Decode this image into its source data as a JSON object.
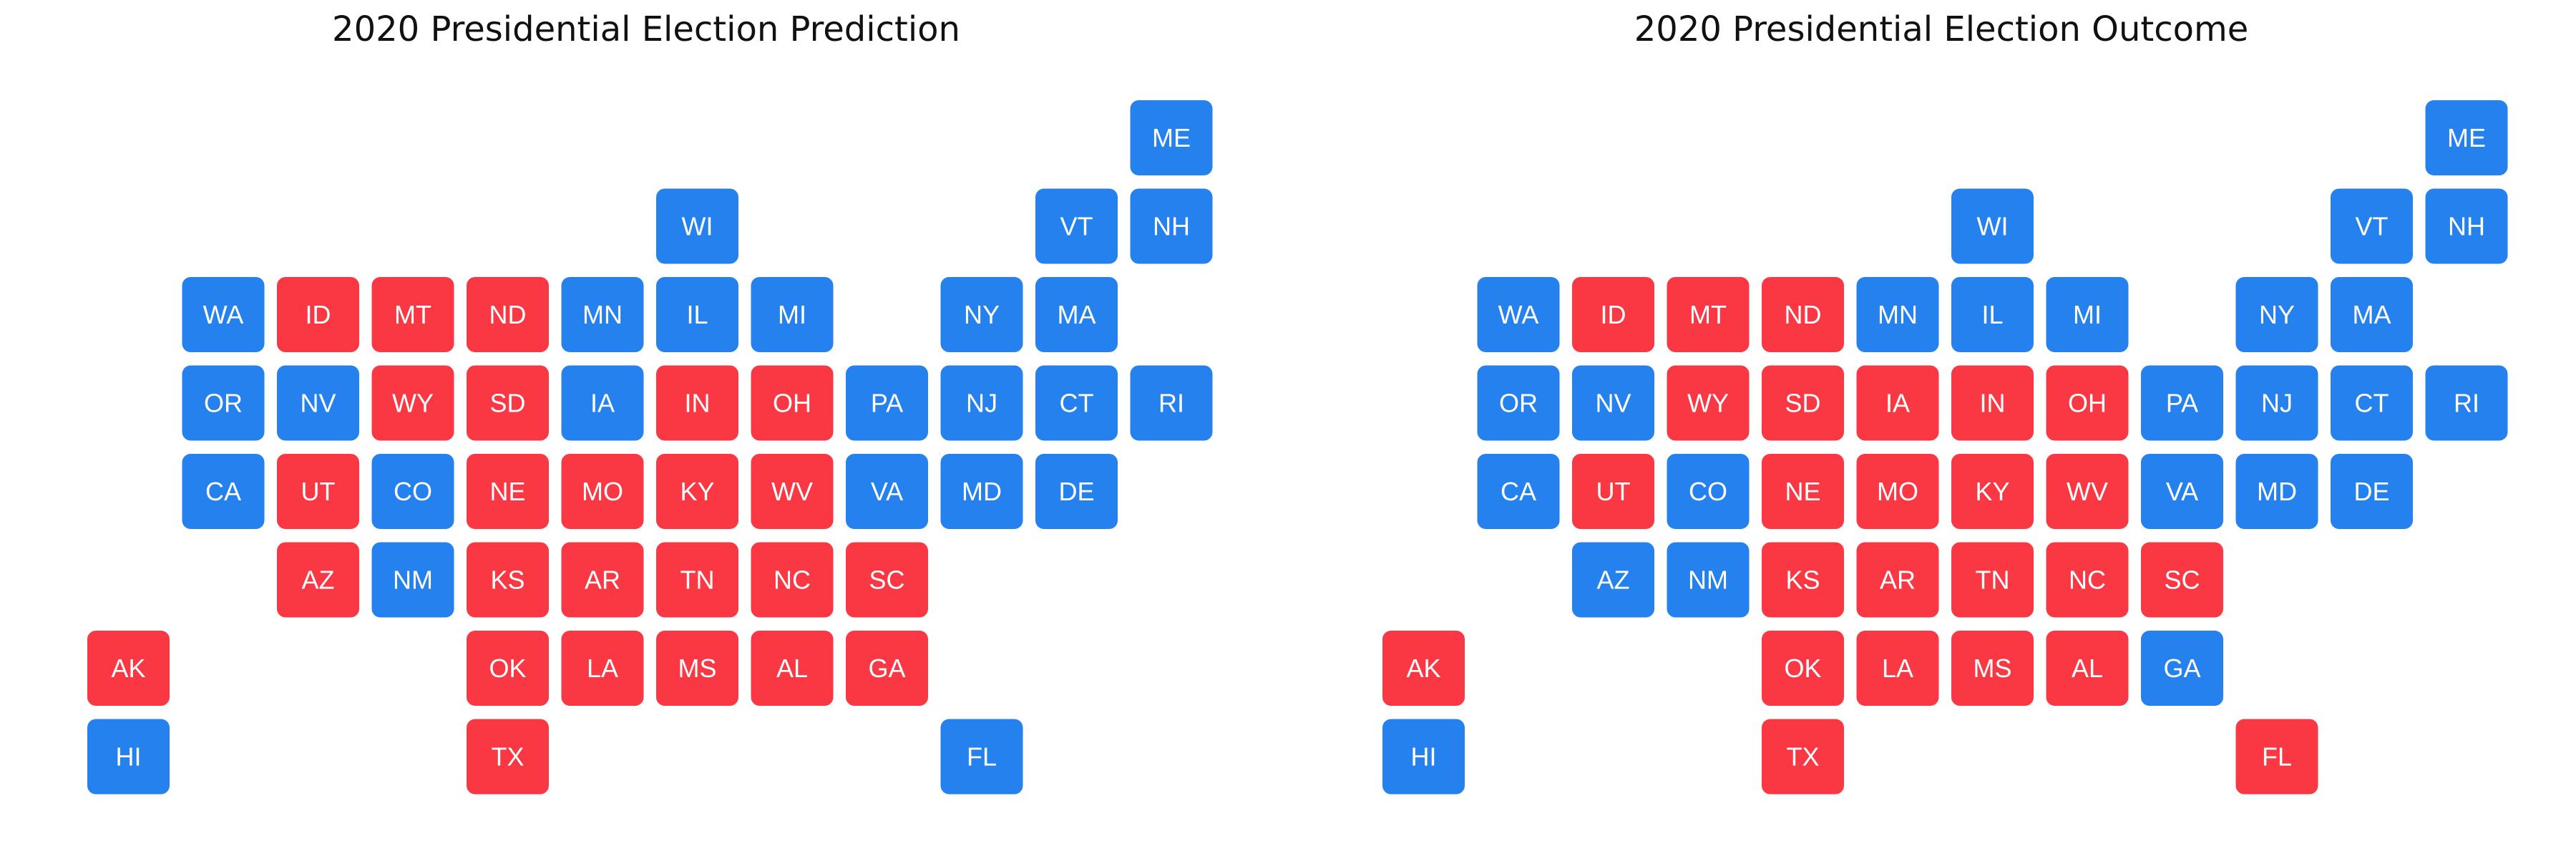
{
  "colors": {
    "dem": "#2481ee",
    "rep": "#f93844",
    "label": "#ffffff",
    "title": "#111111"
  },
  "chart_data": [
    {
      "type": "tile-grid",
      "title": "2020 Presidential Election Prediction",
      "states": [
        {
          "label": "ME",
          "row": 0,
          "col": 11,
          "party": "D"
        },
        {
          "label": "WI",
          "row": 1,
          "col": 6,
          "party": "D"
        },
        {
          "label": "VT",
          "row": 1,
          "col": 10,
          "party": "D"
        },
        {
          "label": "NH",
          "row": 1,
          "col": 11,
          "party": "D"
        },
        {
          "label": "WA",
          "row": 2,
          "col": 1,
          "party": "D"
        },
        {
          "label": "ID",
          "row": 2,
          "col": 2,
          "party": "R"
        },
        {
          "label": "MT",
          "row": 2,
          "col": 3,
          "party": "R"
        },
        {
          "label": "ND",
          "row": 2,
          "col": 4,
          "party": "R"
        },
        {
          "label": "MN",
          "row": 2,
          "col": 5,
          "party": "D"
        },
        {
          "label": "IL",
          "row": 2,
          "col": 6,
          "party": "D"
        },
        {
          "label": "MI",
          "row": 2,
          "col": 7,
          "party": "D"
        },
        {
          "label": "NY",
          "row": 2,
          "col": 9,
          "party": "D"
        },
        {
          "label": "MA",
          "row": 2,
          "col": 10,
          "party": "D"
        },
        {
          "label": "OR",
          "row": 3,
          "col": 1,
          "party": "D"
        },
        {
          "label": "NV",
          "row": 3,
          "col": 2,
          "party": "D"
        },
        {
          "label": "WY",
          "row": 3,
          "col": 3,
          "party": "R"
        },
        {
          "label": "SD",
          "row": 3,
          "col": 4,
          "party": "R"
        },
        {
          "label": "IA",
          "row": 3,
          "col": 5,
          "party": "D"
        },
        {
          "label": "IN",
          "row": 3,
          "col": 6,
          "party": "R"
        },
        {
          "label": "OH",
          "row": 3,
          "col": 7,
          "party": "R"
        },
        {
          "label": "PA",
          "row": 3,
          "col": 8,
          "party": "D"
        },
        {
          "label": "NJ",
          "row": 3,
          "col": 9,
          "party": "D"
        },
        {
          "label": "CT",
          "row": 3,
          "col": 10,
          "party": "D"
        },
        {
          "label": "RI",
          "row": 3,
          "col": 11,
          "party": "D"
        },
        {
          "label": "CA",
          "row": 4,
          "col": 1,
          "party": "D"
        },
        {
          "label": "UT",
          "row": 4,
          "col": 2,
          "party": "R"
        },
        {
          "label": "CO",
          "row": 4,
          "col": 3,
          "party": "D"
        },
        {
          "label": "NE",
          "row": 4,
          "col": 4,
          "party": "R"
        },
        {
          "label": "MO",
          "row": 4,
          "col": 5,
          "party": "R"
        },
        {
          "label": "KY",
          "row": 4,
          "col": 6,
          "party": "R"
        },
        {
          "label": "WV",
          "row": 4,
          "col": 7,
          "party": "R"
        },
        {
          "label": "VA",
          "row": 4,
          "col": 8,
          "party": "D"
        },
        {
          "label": "MD",
          "row": 4,
          "col": 9,
          "party": "D"
        },
        {
          "label": "DE",
          "row": 4,
          "col": 10,
          "party": "D"
        },
        {
          "label": "AZ",
          "row": 5,
          "col": 2,
          "party": "R"
        },
        {
          "label": "NM",
          "row": 5,
          "col": 3,
          "party": "D"
        },
        {
          "label": "KS",
          "row": 5,
          "col": 4,
          "party": "R"
        },
        {
          "label": "AR",
          "row": 5,
          "col": 5,
          "party": "R"
        },
        {
          "label": "TN",
          "row": 5,
          "col": 6,
          "party": "R"
        },
        {
          "label": "NC",
          "row": 5,
          "col": 7,
          "party": "R"
        },
        {
          "label": "SC",
          "row": 5,
          "col": 8,
          "party": "R"
        },
        {
          "label": "AK",
          "row": 6,
          "col": 0,
          "party": "R"
        },
        {
          "label": "OK",
          "row": 6,
          "col": 4,
          "party": "R"
        },
        {
          "label": "LA",
          "row": 6,
          "col": 5,
          "party": "R"
        },
        {
          "label": "MS",
          "row": 6,
          "col": 6,
          "party": "R"
        },
        {
          "label": "AL",
          "row": 6,
          "col": 7,
          "party": "R"
        },
        {
          "label": "GA",
          "row": 6,
          "col": 8,
          "party": "R"
        },
        {
          "label": "HI",
          "row": 7,
          "col": 0,
          "party": "D"
        },
        {
          "label": "TX",
          "row": 7,
          "col": 4,
          "party": "R"
        },
        {
          "label": "FL",
          "row": 7,
          "col": 9,
          "party": "D"
        }
      ]
    },
    {
      "type": "tile-grid",
      "title": "2020 Presidential Election Outcome",
      "states": [
        {
          "label": "ME",
          "row": 0,
          "col": 11,
          "party": "D"
        },
        {
          "label": "WI",
          "row": 1,
          "col": 6,
          "party": "D"
        },
        {
          "label": "VT",
          "row": 1,
          "col": 10,
          "party": "D"
        },
        {
          "label": "NH",
          "row": 1,
          "col": 11,
          "party": "D"
        },
        {
          "label": "WA",
          "row": 2,
          "col": 1,
          "party": "D"
        },
        {
          "label": "ID",
          "row": 2,
          "col": 2,
          "party": "R"
        },
        {
          "label": "MT",
          "row": 2,
          "col": 3,
          "party": "R"
        },
        {
          "label": "ND",
          "row": 2,
          "col": 4,
          "party": "R"
        },
        {
          "label": "MN",
          "row": 2,
          "col": 5,
          "party": "D"
        },
        {
          "label": "IL",
          "row": 2,
          "col": 6,
          "party": "D"
        },
        {
          "label": "MI",
          "row": 2,
          "col": 7,
          "party": "D"
        },
        {
          "label": "NY",
          "row": 2,
          "col": 9,
          "party": "D"
        },
        {
          "label": "MA",
          "row": 2,
          "col": 10,
          "party": "D"
        },
        {
          "label": "OR",
          "row": 3,
          "col": 1,
          "party": "D"
        },
        {
          "label": "NV",
          "row": 3,
          "col": 2,
          "party": "D"
        },
        {
          "label": "WY",
          "row": 3,
          "col": 3,
          "party": "R"
        },
        {
          "label": "SD",
          "row": 3,
          "col": 4,
          "party": "R"
        },
        {
          "label": "IA",
          "row": 3,
          "col": 5,
          "party": "R"
        },
        {
          "label": "IN",
          "row": 3,
          "col": 6,
          "party": "R"
        },
        {
          "label": "OH",
          "row": 3,
          "col": 7,
          "party": "R"
        },
        {
          "label": "PA",
          "row": 3,
          "col": 8,
          "party": "D"
        },
        {
          "label": "NJ",
          "row": 3,
          "col": 9,
          "party": "D"
        },
        {
          "label": "CT",
          "row": 3,
          "col": 10,
          "party": "D"
        },
        {
          "label": "RI",
          "row": 3,
          "col": 11,
          "party": "D"
        },
        {
          "label": "CA",
          "row": 4,
          "col": 1,
          "party": "D"
        },
        {
          "label": "UT",
          "row": 4,
          "col": 2,
          "party": "R"
        },
        {
          "label": "CO",
          "row": 4,
          "col": 3,
          "party": "D"
        },
        {
          "label": "NE",
          "row": 4,
          "col": 4,
          "party": "R"
        },
        {
          "label": "MO",
          "row": 4,
          "col": 5,
          "party": "R"
        },
        {
          "label": "KY",
          "row": 4,
          "col": 6,
          "party": "R"
        },
        {
          "label": "WV",
          "row": 4,
          "col": 7,
          "party": "R"
        },
        {
          "label": "VA",
          "row": 4,
          "col": 8,
          "party": "D"
        },
        {
          "label": "MD",
          "row": 4,
          "col": 9,
          "party": "D"
        },
        {
          "label": "DE",
          "row": 4,
          "col": 10,
          "party": "D"
        },
        {
          "label": "AZ",
          "row": 5,
          "col": 2,
          "party": "D"
        },
        {
          "label": "NM",
          "row": 5,
          "col": 3,
          "party": "D"
        },
        {
          "label": "KS",
          "row": 5,
          "col": 4,
          "party": "R"
        },
        {
          "label": "AR",
          "row": 5,
          "col": 5,
          "party": "R"
        },
        {
          "label": "TN",
          "row": 5,
          "col": 6,
          "party": "R"
        },
        {
          "label": "NC",
          "row": 5,
          "col": 7,
          "party": "R"
        },
        {
          "label": "SC",
          "row": 5,
          "col": 8,
          "party": "R"
        },
        {
          "label": "AK",
          "row": 6,
          "col": 0,
          "party": "R"
        },
        {
          "label": "OK",
          "row": 6,
          "col": 4,
          "party": "R"
        },
        {
          "label": "LA",
          "row": 6,
          "col": 5,
          "party": "R"
        },
        {
          "label": "MS",
          "row": 6,
          "col": 6,
          "party": "R"
        },
        {
          "label": "AL",
          "row": 6,
          "col": 7,
          "party": "R"
        },
        {
          "label": "GA",
          "row": 6,
          "col": 8,
          "party": "D"
        },
        {
          "label": "HI",
          "row": 7,
          "col": 0,
          "party": "D"
        },
        {
          "label": "TX",
          "row": 7,
          "col": 4,
          "party": "R"
        },
        {
          "label": "FL",
          "row": 7,
          "col": 9,
          "party": "R"
        }
      ]
    }
  ]
}
